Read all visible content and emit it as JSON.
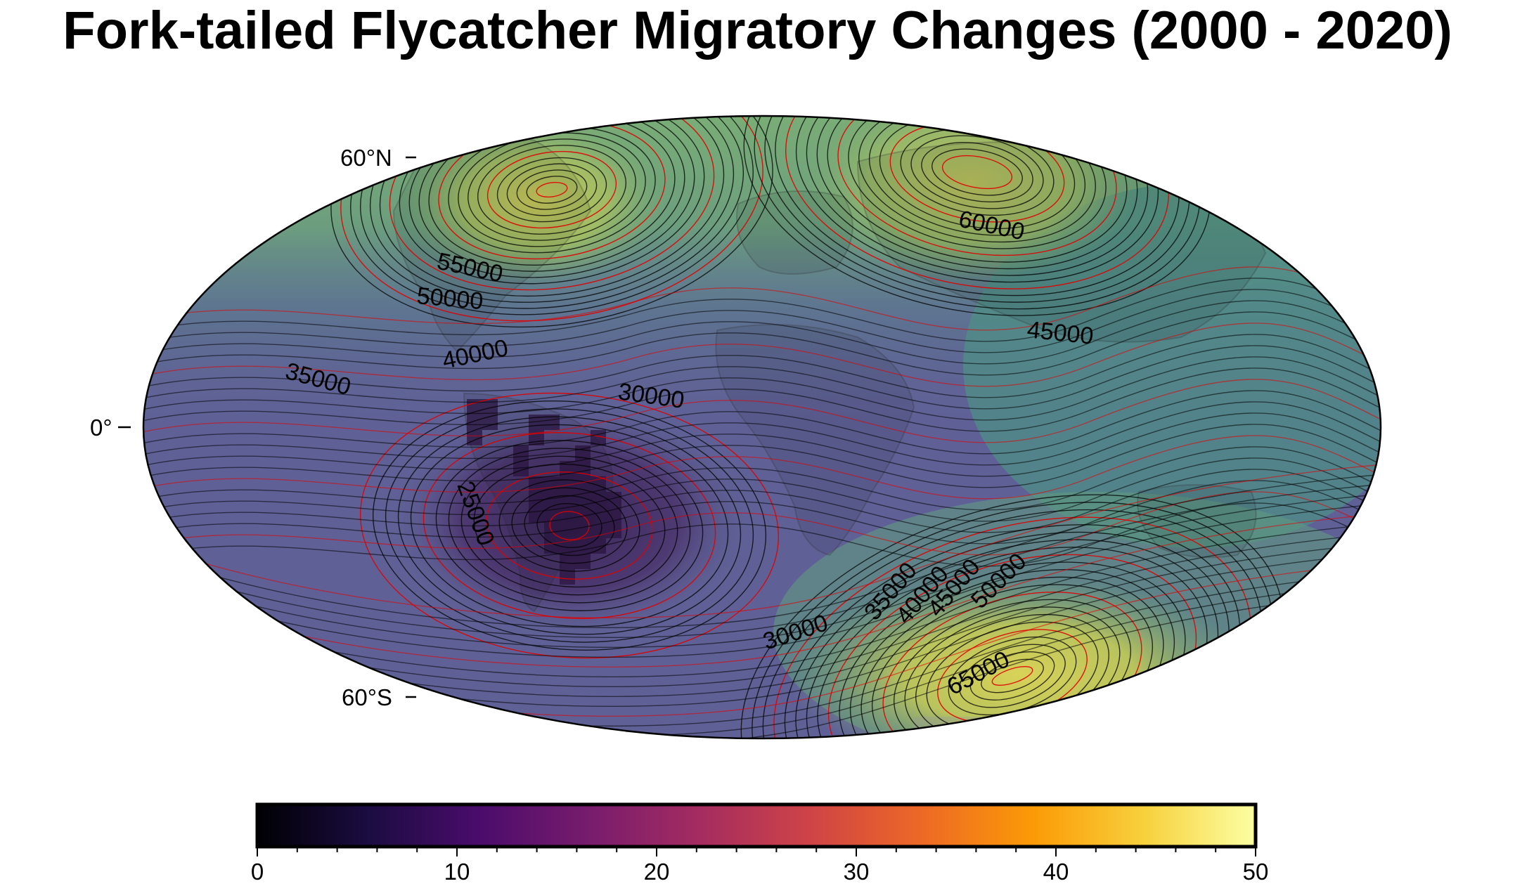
{
  "title": "Fork-tailed Flycatcher Migratory Changes (2000 - 2020)",
  "map": {
    "projection": "hammer",
    "latitude_labels": {
      "north": "60°N",
      "equator": "0°",
      "south": "60°S"
    },
    "contour_labels": [
      "55000",
      "50000",
      "40000",
      "35000",
      "30000",
      "25000",
      "60000",
      "45000",
      "30000",
      "35000",
      "40000",
      "45000",
      "50000",
      "65000"
    ],
    "colors": {
      "ocean_purple": "#5e5f94",
      "deep_purple": "#3c2a5c",
      "green": "#6fa57a",
      "yellow_green": "#bbc25e",
      "contour_black": "#000000",
      "contour_red": "#e00000"
    },
    "occurrence_note_color": "#2b1640"
  },
  "colorbar": {
    "min": 0,
    "max": 50,
    "tick_labels": [
      "0",
      "10",
      "20",
      "30",
      "40",
      "50"
    ],
    "palette": [
      "#000004",
      "#1b0c41",
      "#4a0c6b",
      "#781c6d",
      "#a52c60",
      "#cf4446",
      "#ed6925",
      "#fb9b06",
      "#f7d13d",
      "#fcffa4"
    ]
  }
}
